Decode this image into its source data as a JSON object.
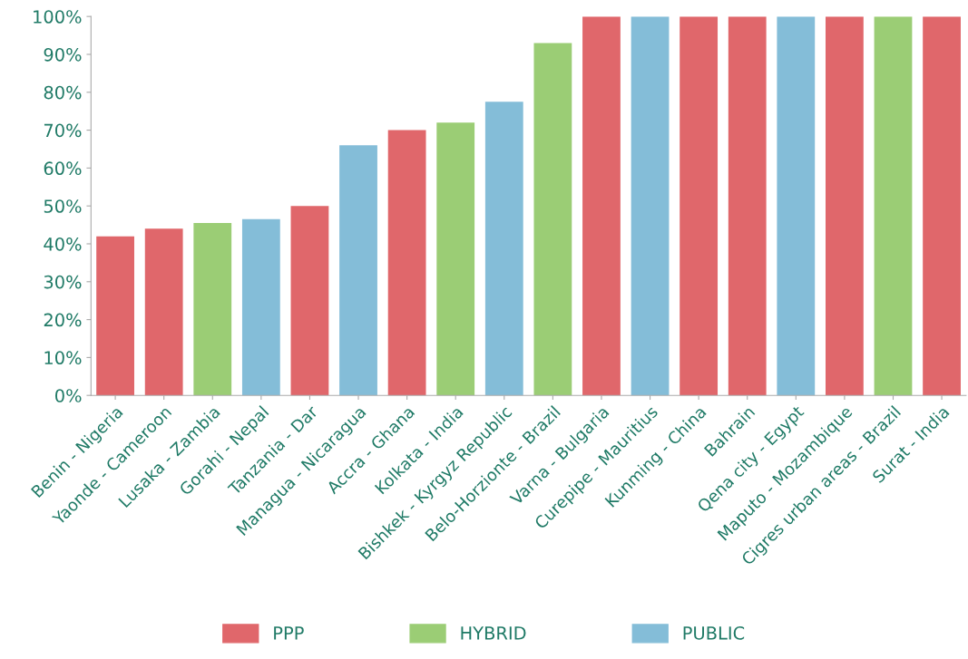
{
  "chart_data": {
    "type": "bar",
    "categories": [
      "Benin - Nigeria",
      "Yaonde - Cameroon",
      "Lusaka - Zambia",
      "Gorahi - Nepal",
      "Tanzania - Dar",
      "Managua - Nicaragua",
      "Accra - Ghana",
      "Kolkata - India",
      "Bishkek - Kyrgyz Republic",
      "Belo-Horzionte - Brazil",
      "Varna - Bulgaria",
      "Curepipe - Mauritius",
      "Kunming - China",
      "Bahrain",
      "Qena city - Egypt",
      "Maputo - Mozambique",
      "Cigres urban areas - Brazil",
      "Surat - India"
    ],
    "series": [
      {
        "name": "PPP",
        "color": "#e0676b",
        "values": [
          42,
          44,
          null,
          null,
          50,
          null,
          70,
          null,
          null,
          null,
          100,
          null,
          100,
          100,
          null,
          100,
          null,
          100
        ]
      },
      {
        "name": "HYBRID",
        "color": "#9bcd75",
        "values": [
          null,
          null,
          45.5,
          null,
          null,
          null,
          null,
          72,
          null,
          93,
          null,
          null,
          null,
          null,
          null,
          null,
          100,
          null
        ]
      },
      {
        "name": "PUBLIC",
        "color": "#84bdd8",
        "values": [
          null,
          null,
          null,
          46.5,
          null,
          66,
          null,
          null,
          77.5,
          null,
          null,
          100,
          null,
          null,
          100,
          null,
          null,
          null
        ]
      }
    ],
    "ylim": [
      0,
      100
    ],
    "yticks": [
      {
        "value": 0,
        "label": "0%"
      },
      {
        "value": 10,
        "label": "10%"
      },
      {
        "value": 20,
        "label": "20%"
      },
      {
        "value": 30,
        "label": "30%"
      },
      {
        "value": 40,
        "label": "40%"
      },
      {
        "value": 50,
        "label": "50%"
      },
      {
        "value": 60,
        "label": "60%"
      },
      {
        "value": 70,
        "label": "70%"
      },
      {
        "value": 80,
        "label": "80%"
      },
      {
        "value": 90,
        "label": "90%"
      },
      {
        "value": 100,
        "label": "100%"
      }
    ],
    "grid": false,
    "legend": "bottom"
  }
}
